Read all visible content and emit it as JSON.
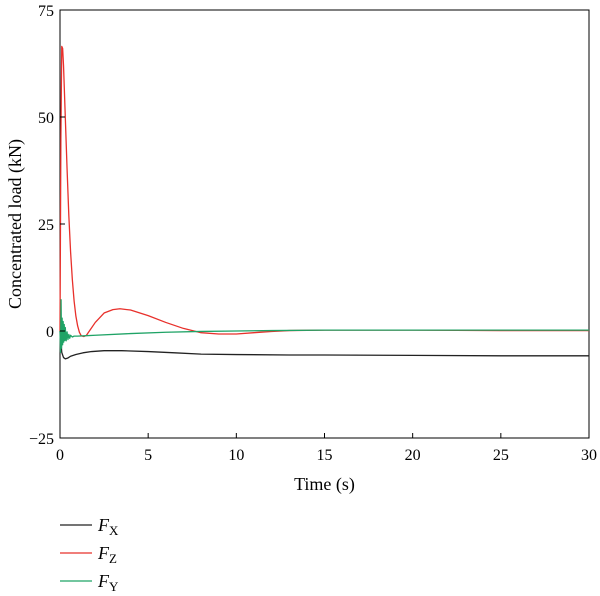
{
  "chart_data": {
    "type": "line",
    "title": "",
    "xlabel": "Time (s)",
    "ylabel": "Concentrated load (kN)",
    "xlim": [
      0,
      30
    ],
    "ylim": [
      -25,
      75
    ],
    "xticks": [
      0,
      5,
      10,
      15,
      20,
      25,
      30
    ],
    "yticks": [
      -25,
      0,
      25,
      50,
      75
    ],
    "xtick_labels": [
      "0",
      "5",
      "10",
      "15",
      "20",
      "25",
      "30"
    ],
    "ytick_labels": [
      "−25",
      "0",
      "25",
      "50",
      "75"
    ],
    "grid": false,
    "legend_position": "below-left",
    "series": [
      {
        "name": "FX",
        "label_main": "F",
        "label_sub": "X",
        "color": "#222222",
        "x": [
          0,
          0.05,
          0.1,
          0.2,
          0.3,
          0.45,
          0.6,
          0.9,
          1.3,
          1.8,
          2.5,
          3.5,
          5,
          6.5,
          8,
          10,
          13,
          15,
          20,
          25,
          30
        ],
        "y": [
          0,
          -2.5,
          -5,
          -6.2,
          -6.5,
          -6.3,
          -5.9,
          -5.5,
          -5.1,
          -4.8,
          -4.6,
          -4.6,
          -4.8,
          -5.1,
          -5.4,
          -5.5,
          -5.6,
          -5.6,
          -5.7,
          -5.8,
          -5.8
        ]
      },
      {
        "name": "FZ",
        "label_main": "F",
        "label_sub": "Z",
        "color": "#e8302b",
        "x": [
          0,
          0.05,
          0.1,
          0.15,
          0.2,
          0.3,
          0.4,
          0.5,
          0.6,
          0.7,
          0.8,
          0.9,
          1.0,
          1.1,
          1.2,
          1.35,
          1.5,
          1.7,
          2.0,
          2.5,
          3.0,
          3.4,
          4.0,
          5.0,
          6.0,
          7.0,
          8.0,
          9.0,
          10.0,
          11.0,
          12.0,
          13.0,
          15.0,
          20.0,
          25.0,
          30.0
        ],
        "y": [
          0,
          45,
          66.5,
          66,
          62,
          50,
          38,
          27,
          18.5,
          12,
          7,
          3.5,
          1.2,
          -0.3,
          -1.1,
          -1.3,
          -1.0,
          0.2,
          2.0,
          4.2,
          5.0,
          5.2,
          4.9,
          3.6,
          2.0,
          0.6,
          -0.4,
          -0.7,
          -0.7,
          -0.4,
          -0.1,
          0.1,
          0.2,
          0.2,
          0.1,
          0.1
        ]
      },
      {
        "name": "FY",
        "label_main": "F",
        "label_sub": "Y",
        "color": "#1fa366",
        "x": [
          0,
          0.03,
          0.06,
          0.09,
          0.12,
          0.15,
          0.18,
          0.21,
          0.24,
          0.27,
          0.3,
          0.35,
          0.4,
          0.45,
          0.5,
          0.55,
          0.6,
          0.7,
          0.8,
          1.0,
          1.5,
          2,
          4,
          6,
          8,
          10,
          12,
          15,
          20,
          25,
          30
        ],
        "y": [
          0,
          -5,
          7.3,
          -4,
          3,
          -3.2,
          2.2,
          -2.6,
          1.5,
          -2.2,
          0.8,
          -2.3,
          -0.2,
          -2.0,
          -0.8,
          -1.7,
          -1.0,
          -1.4,
          -1.2,
          -1.2,
          -1.1,
          -1.0,
          -0.6,
          -0.3,
          -0.1,
          0.0,
          0.1,
          0.2,
          0.2,
          0.2,
          0.2
        ]
      }
    ]
  }
}
